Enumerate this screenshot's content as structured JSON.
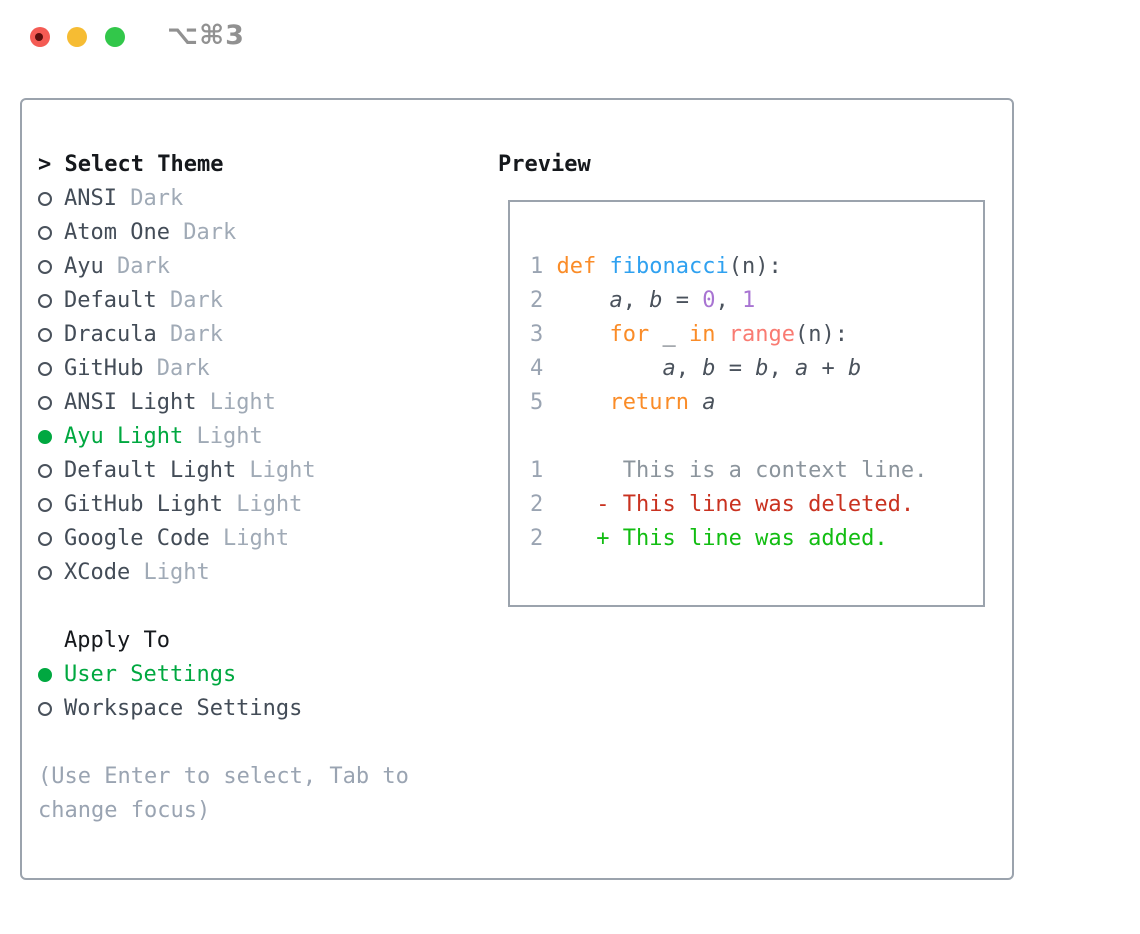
{
  "window": {
    "titlebar": {
      "shortcut_label": "⌥⌘3",
      "traffic_lights": [
        "close",
        "minimize",
        "zoom"
      ]
    }
  },
  "theme_panel": {
    "prompt": ">",
    "title": "Select Theme",
    "themes": [
      {
        "name": "ANSI",
        "variant": "Dark",
        "selected": false
      },
      {
        "name": "Atom One",
        "variant": "Dark",
        "selected": false
      },
      {
        "name": "Ayu",
        "variant": "Dark",
        "selected": false
      },
      {
        "name": "Default",
        "variant": "Dark",
        "selected": false
      },
      {
        "name": "Dracula",
        "variant": "Dark",
        "selected": false
      },
      {
        "name": "GitHub",
        "variant": "Dark",
        "selected": false
      },
      {
        "name": "ANSI Light",
        "variant": "Light",
        "selected": false
      },
      {
        "name": "Ayu Light",
        "variant": "Light",
        "selected": true
      },
      {
        "name": "Default Light",
        "variant": "Light",
        "selected": false
      },
      {
        "name": "GitHub Light",
        "variant": "Light",
        "selected": false
      },
      {
        "name": "Google Code",
        "variant": "Light",
        "selected": false
      },
      {
        "name": "XCode",
        "variant": "Light",
        "selected": false
      }
    ],
    "apply_to": {
      "title": "Apply To",
      "options": [
        {
          "label": "User Settings",
          "selected": true
        },
        {
          "label": "Workspace Settings",
          "selected": false
        }
      ]
    },
    "hint": "(Use Enter to select, Tab to change focus)"
  },
  "preview": {
    "title": "Preview",
    "code_lines": [
      {
        "num": "1",
        "segments": [
          {
            "t": " ",
            "c": "p"
          },
          {
            "t": "def",
            "c": "kw"
          },
          {
            "t": " ",
            "c": "p"
          },
          {
            "t": "fibonacci",
            "c": "fn"
          },
          {
            "t": "(n):",
            "c": "p"
          }
        ]
      },
      {
        "num": "2",
        "segments": [
          {
            "t": "     ",
            "c": "p"
          },
          {
            "t": "a",
            "c": "v"
          },
          {
            "t": ", ",
            "c": "p"
          },
          {
            "t": "b",
            "c": "v"
          },
          {
            "t": " = ",
            "c": "p"
          },
          {
            "t": "0",
            "c": "num"
          },
          {
            "t": ", ",
            "c": "p"
          },
          {
            "t": "1",
            "c": "num"
          }
        ]
      },
      {
        "num": "3",
        "segments": [
          {
            "t": "     ",
            "c": "p"
          },
          {
            "t": "for",
            "c": "kw"
          },
          {
            "t": " _ ",
            "c": "p"
          },
          {
            "t": "in",
            "c": "kw"
          },
          {
            "t": " ",
            "c": "p"
          },
          {
            "t": "range",
            "c": "call"
          },
          {
            "t": "(n):",
            "c": "p"
          }
        ]
      },
      {
        "num": "4",
        "segments": [
          {
            "t": "         ",
            "c": "p"
          },
          {
            "t": "a",
            "c": "v"
          },
          {
            "t": ", ",
            "c": "p"
          },
          {
            "t": "b",
            "c": "v"
          },
          {
            "t": " = ",
            "c": "p"
          },
          {
            "t": "b",
            "c": "v"
          },
          {
            "t": ", ",
            "c": "p"
          },
          {
            "t": "a",
            "c": "v"
          },
          {
            "t": " + ",
            "c": "p"
          },
          {
            "t": "b",
            "c": "v"
          }
        ]
      },
      {
        "num": "5",
        "segments": [
          {
            "t": "     ",
            "c": "p"
          },
          {
            "t": "return",
            "c": "kw"
          },
          {
            "t": " ",
            "c": "p"
          },
          {
            "t": "a",
            "c": "v"
          }
        ]
      },
      {
        "num": "",
        "segments": []
      },
      {
        "num": "1",
        "segments": [
          {
            "t": "      This is a context line.",
            "c": "ctx"
          }
        ]
      },
      {
        "num": "2",
        "segments": [
          {
            "t": "    - This line was deleted.",
            "c": "del"
          }
        ]
      },
      {
        "num": "2",
        "segments": [
          {
            "t": "    + This line was added.",
            "c": "add"
          }
        ]
      }
    ]
  },
  "colors": {
    "panel_border": "#9ba3ad",
    "selection_green": "#00a840",
    "item_text": "#434c57",
    "variant_gray": "#a0aab6",
    "hint_gray": "#9aa4b2",
    "line_number": "#9aa4b2",
    "syntax_keyword_orange": "#fa8c28",
    "syntax_function_blue": "#2fa1f0",
    "syntax_number_purple": "#a874d2",
    "syntax_call_salmon": "#f97b72",
    "diff_context_gray": "#8b949c",
    "diff_deleted_red": "#c93220",
    "diff_added_green": "#12bd12",
    "traffic_red": "#f45b54",
    "traffic_yellow": "#f6bc33",
    "traffic_green": "#32c74a"
  }
}
